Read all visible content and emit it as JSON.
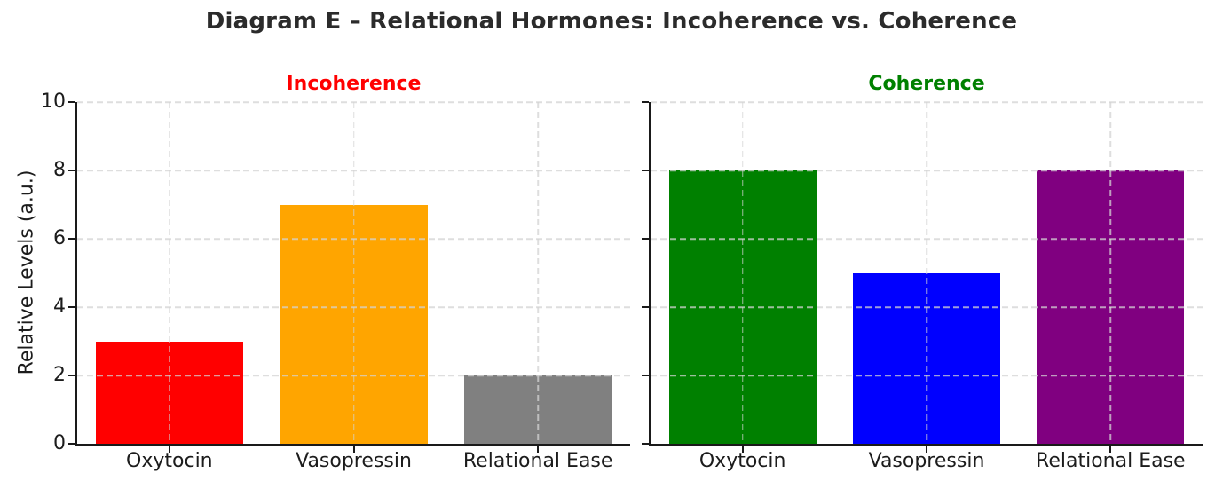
{
  "figure": {
    "title": "Diagram E – Relational Hormones: Incoherence vs. Coherence",
    "ylabel": "Relative Levels (a.u.)",
    "background_color": "#ffffff",
    "text_color": "#1c1c1c"
  },
  "chart_data": [
    {
      "type": "bar",
      "title": "Incoherence",
      "title_color": "#ff0000",
      "categories": [
        "Oxytocin",
        "Vasopressin",
        "Relational Ease"
      ],
      "values": [
        3,
        7,
        2
      ],
      "bar_colors": [
        "#ff0000",
        "#ffa500",
        "#808080"
      ],
      "xlabel": "",
      "ylabel": "Relative Levels (a.u.)",
      "ylim": [
        0,
        10
      ],
      "yticks": [
        0,
        2,
        4,
        6,
        8,
        10
      ],
      "grid": true,
      "grid_style": "dashed",
      "legend": false
    },
    {
      "type": "bar",
      "title": "Coherence",
      "title_color": "#008000",
      "categories": [
        "Oxytocin",
        "Vasopressin",
        "Relational Ease"
      ],
      "values": [
        8,
        5,
        8
      ],
      "bar_colors": [
        "#008000",
        "#0000ff",
        "#800080"
      ],
      "xlabel": "",
      "ylabel": "",
      "ylim": [
        0,
        10
      ],
      "yticks": [
        0,
        2,
        4,
        6,
        8,
        10
      ],
      "grid": true,
      "grid_style": "dashed",
      "legend": false
    }
  ]
}
